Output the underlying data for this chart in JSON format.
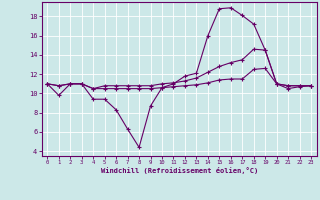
{
  "xlabel": "Windchill (Refroidissement éolien,°C)",
  "background_color": "#cce8e8",
  "line_color": "#660066",
  "xlim": [
    -0.5,
    23.5
  ],
  "ylim": [
    3.5,
    19.5
  ],
  "yticks": [
    4,
    6,
    8,
    10,
    12,
    14,
    16,
    18
  ],
  "xticks": [
    0,
    1,
    2,
    3,
    4,
    5,
    6,
    7,
    8,
    9,
    10,
    11,
    12,
    13,
    14,
    15,
    16,
    17,
    18,
    19,
    20,
    21,
    22,
    23
  ],
  "series": [
    [
      11.0,
      9.8,
      11.0,
      11.0,
      9.4,
      9.4,
      8.3,
      6.3,
      4.4,
      8.7,
      10.6,
      11.0,
      11.8,
      12.1,
      16.0,
      18.8,
      18.9,
      18.1,
      17.2,
      14.5,
      11.0,
      10.5,
      10.7,
      10.8
    ],
    [
      11.0,
      10.8,
      11.0,
      11.0,
      10.5,
      10.8,
      10.8,
      10.8,
      10.8,
      10.8,
      11.0,
      11.1,
      11.3,
      11.6,
      12.2,
      12.8,
      13.2,
      13.5,
      14.6,
      14.5,
      11.0,
      10.8,
      10.8,
      10.8
    ],
    [
      11.0,
      10.8,
      11.0,
      11.0,
      10.5,
      10.5,
      10.5,
      10.5,
      10.5,
      10.5,
      10.6,
      10.7,
      10.8,
      10.9,
      11.1,
      11.4,
      11.5,
      11.5,
      12.5,
      12.6,
      11.0,
      10.8,
      10.8,
      10.8
    ]
  ]
}
